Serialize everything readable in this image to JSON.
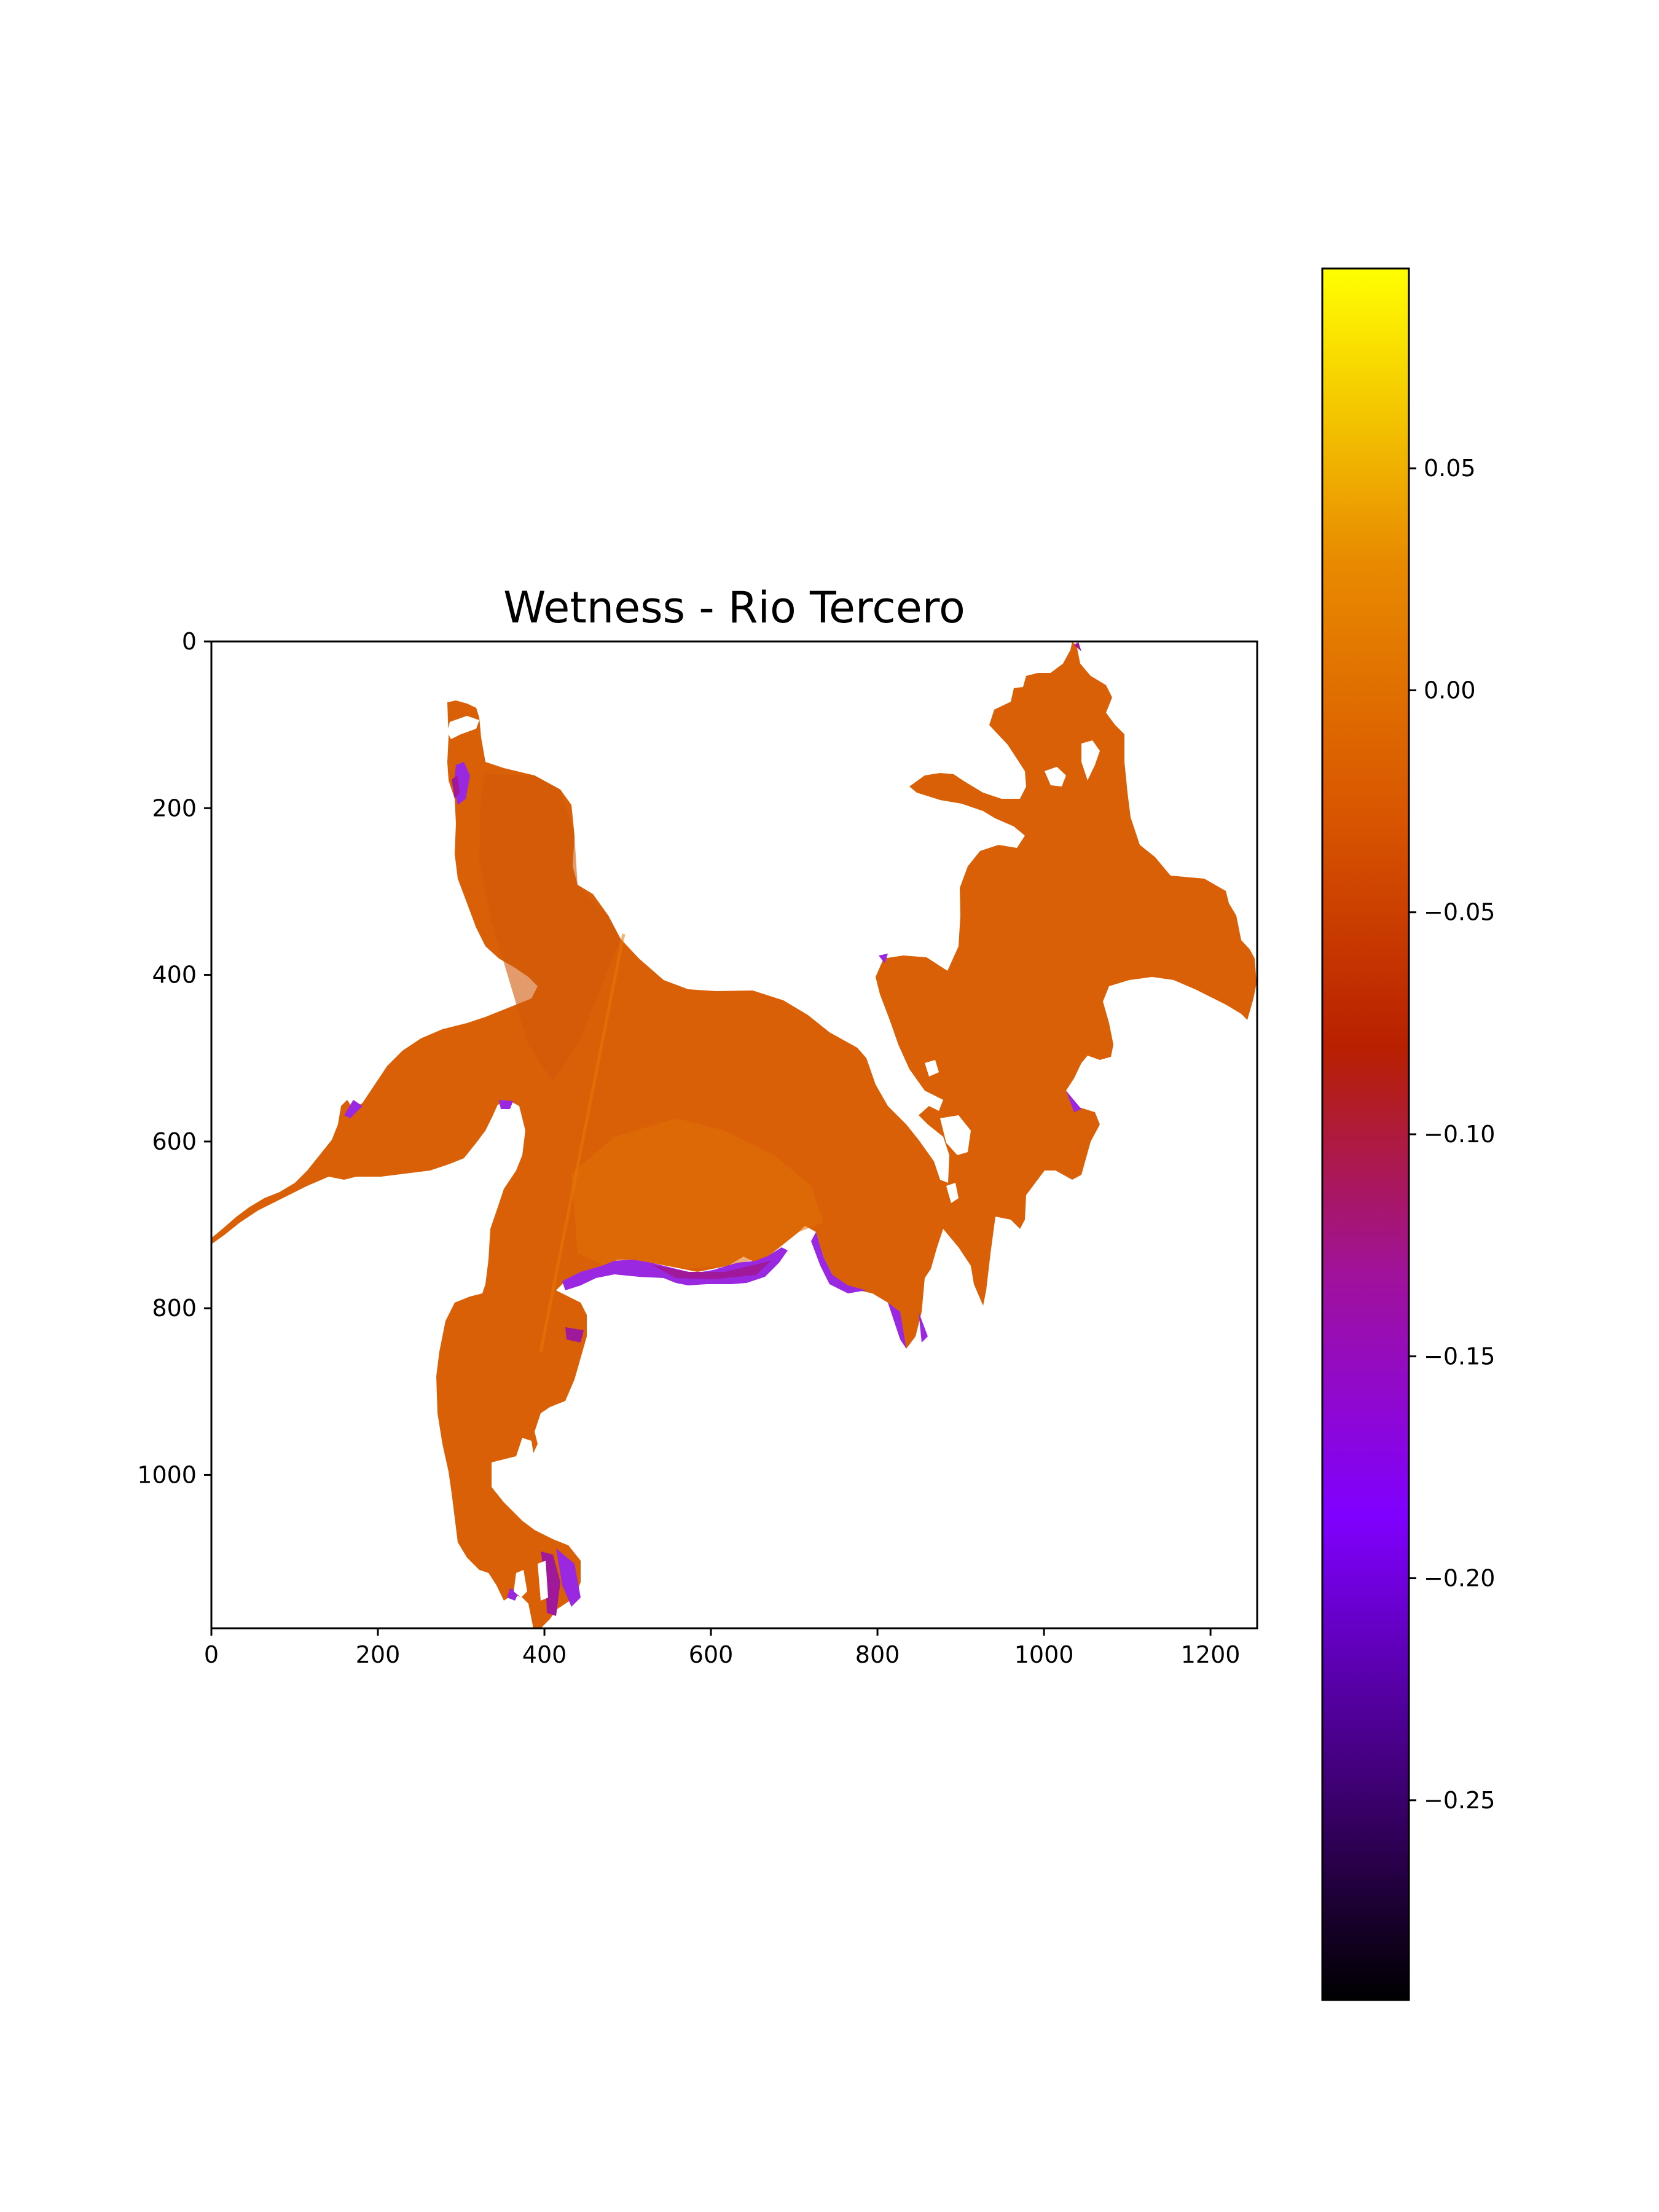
{
  "chart_data": {
    "type": "heatmap",
    "title": "Wetness - Rio Tercero",
    "xlabel": "",
    "ylabel": "",
    "xlim": [
      0,
      1256
    ],
    "ylim": [
      1184,
      0
    ],
    "xticks": [
      0,
      200,
      400,
      600,
      800,
      1000,
      1200
    ],
    "yticks": [
      0,
      200,
      400,
      600,
      800,
      1000
    ],
    "xtick_labels": [
      "0",
      "200",
      "400",
      "600",
      "800",
      "1000",
      "1200"
    ],
    "ytick_labels": [
      "0",
      "200",
      "400",
      "600",
      "800",
      "1000"
    ],
    "colormap": "gnuplot",
    "colormap_stops": [
      "#000000",
      "#3d0070",
      "#8000ff",
      "#a0129a",
      "#b82000",
      "#d85400",
      "#e88a00",
      "#ffff00"
    ],
    "colorbar": {
      "range": [
        -0.295,
        0.095
      ],
      "ticks": [
        0.05,
        0.0,
        -0.05,
        -0.1,
        -0.15,
        -0.2,
        -0.25
      ],
      "tick_labels": [
        "0.05",
        "0.00",
        "−0.05",
        "−0.10",
        "−0.15",
        "−0.20",
        "−0.25"
      ]
    },
    "typical_value_water": -0.03,
    "edge_value_min": -0.2,
    "colors": {
      "water_dark": "#d35a08",
      "water_mid": "#d96006",
      "water_light": "#e07008",
      "edge_purple": "#9a28e0",
      "edge_magenta": "#a0199a"
    }
  }
}
